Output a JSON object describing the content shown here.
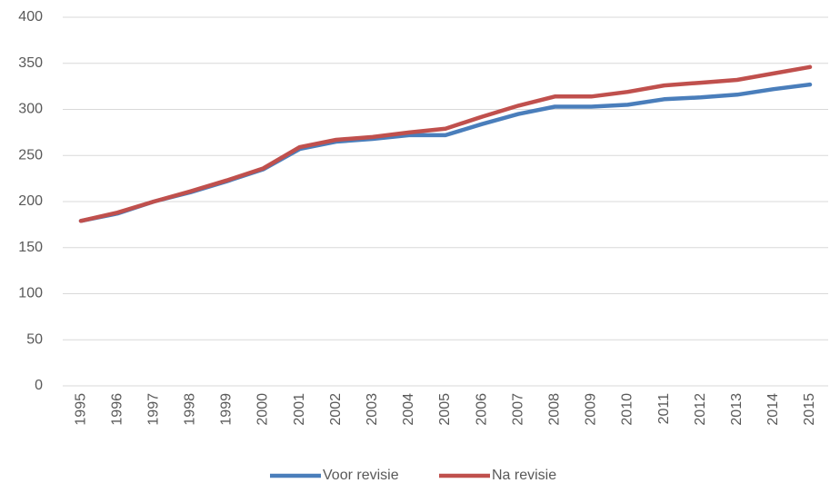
{
  "chart_data": {
    "type": "line",
    "categories": [
      "1995",
      "1996",
      "1997",
      "1998",
      "1999",
      "2000",
      "2001",
      "2002",
      "2003",
      "2004",
      "2005",
      "2006",
      "2007",
      "2008",
      "2009",
      "2010",
      "2011",
      "2012",
      "2013",
      "2014",
      "2015"
    ],
    "series": [
      {
        "name": "Voor revisie",
        "color": "#4a7ebb",
        "values": [
          179,
          187,
          200,
          210,
          222,
          235,
          257,
          265,
          268,
          272,
          272,
          284,
          295,
          303,
          303,
          305,
          311,
          313,
          316,
          322,
          327
        ]
      },
      {
        "name": "Na revisie",
        "color": "#c0504d",
        "values": [
          179,
          188,
          200,
          211,
          223,
          236,
          259,
          267,
          270,
          275,
          279,
          292,
          304,
          314,
          314,
          319,
          326,
          329,
          332,
          339,
          346
        ]
      }
    ],
    "ylim": [
      0,
      400
    ],
    "yticks": [
      0,
      50,
      100,
      150,
      200,
      250,
      300,
      350,
      400
    ],
    "grid": true,
    "legend": "bottom"
  }
}
